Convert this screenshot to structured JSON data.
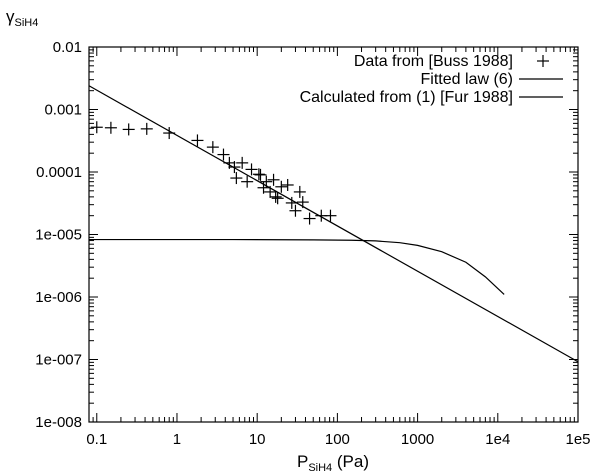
{
  "chart_data": {
    "type": "scatter",
    "xlabel": {
      "main": "P",
      "sub": "SiH4",
      "suffix": " (Pa)"
    },
    "ylabel": {
      "main": "γ",
      "sub": "SiH4"
    },
    "xscale": "log",
    "yscale": "log",
    "xlim": [
      0.08,
      100000
    ],
    "ylim": [
      1e-08,
      0.01
    ],
    "xticks": [
      {
        "value": 0.1,
        "label": "0.1"
      },
      {
        "value": 1,
        "label": "1"
      },
      {
        "value": 10,
        "label": "10"
      },
      {
        "value": 100,
        "label": "100"
      },
      {
        "value": 1000,
        "label": "1000"
      },
      {
        "value": 10000,
        "label": "1e4"
      },
      {
        "value": 100000,
        "label": "1e5"
      }
    ],
    "yticks": [
      {
        "value": 0.01,
        "label": "0.01"
      },
      {
        "value": 0.001,
        "label": "0.001"
      },
      {
        "value": 0.0001,
        "label": "0.0001"
      },
      {
        "value": 1e-05,
        "label": "1e-005"
      },
      {
        "value": 1e-06,
        "label": "1e-006"
      },
      {
        "value": 1e-07,
        "label": "1e-007"
      },
      {
        "value": 1e-08,
        "label": "1e-008"
      }
    ],
    "grid": false,
    "legend_position": "top-right",
    "series": [
      {
        "name": "Data from [Buss 1988]",
        "kind": "points",
        "marker": "plus",
        "points": [
          [
            0.1,
            0.00052
          ],
          [
            0.15,
            0.00051
          ],
          [
            0.25,
            0.00048
          ],
          [
            0.42,
            0.00049
          ],
          [
            0.8,
            0.00042
          ],
          [
            1.8,
            0.00032
          ],
          [
            2.8,
            0.00025
          ],
          [
            3.8,
            0.00019
          ],
          [
            4.5,
            0.00014
          ],
          [
            5.2,
            0.00012
          ],
          [
            5.5,
            8e-05
          ],
          [
            6.5,
            0.00014
          ],
          [
            7.5,
            7e-05
          ],
          [
            8.5,
            0.00011
          ],
          [
            10.5,
            9.2e-05
          ],
          [
            11,
            9e-05
          ],
          [
            12,
            5.6e-05
          ],
          [
            13,
            7e-05
          ],
          [
            14.5,
            4.8e-05
          ],
          [
            16,
            7.5e-05
          ],
          [
            17,
            4e-05
          ],
          [
            18,
            3.8e-05
          ],
          [
            20,
            5.8e-05
          ],
          [
            24,
            6.2e-05
          ],
          [
            27,
            3.2e-05
          ],
          [
            30,
            2.4e-05
          ],
          [
            34,
            4.8e-05
          ],
          [
            37,
            3.3e-05
          ],
          [
            45,
            1.8e-05
          ],
          [
            63,
            2e-05
          ],
          [
            82,
            2e-05
          ]
        ]
      },
      {
        "name": "Fitted law (6)",
        "kind": "line",
        "points": [
          [
            0.08,
            0.0024
          ],
          [
            100000,
            9.2e-08
          ]
        ]
      },
      {
        "name": "Calculated from (1) [Fur 1988]",
        "kind": "line",
        "points": [
          [
            0.08,
            8.3e-06
          ],
          [
            0.5,
            8.3e-06
          ],
          [
            5,
            8.3e-06
          ],
          [
            50,
            8.2e-06
          ],
          [
            150,
            8.1e-06
          ],
          [
            300,
            7.9e-06
          ],
          [
            600,
            7.4e-06
          ],
          [
            1000,
            6.7e-06
          ],
          [
            2000,
            5.3e-06
          ],
          [
            4000,
            3.6e-06
          ],
          [
            7000,
            2.1e-06
          ],
          [
            12000,
            1.1e-06
          ]
        ]
      }
    ]
  }
}
